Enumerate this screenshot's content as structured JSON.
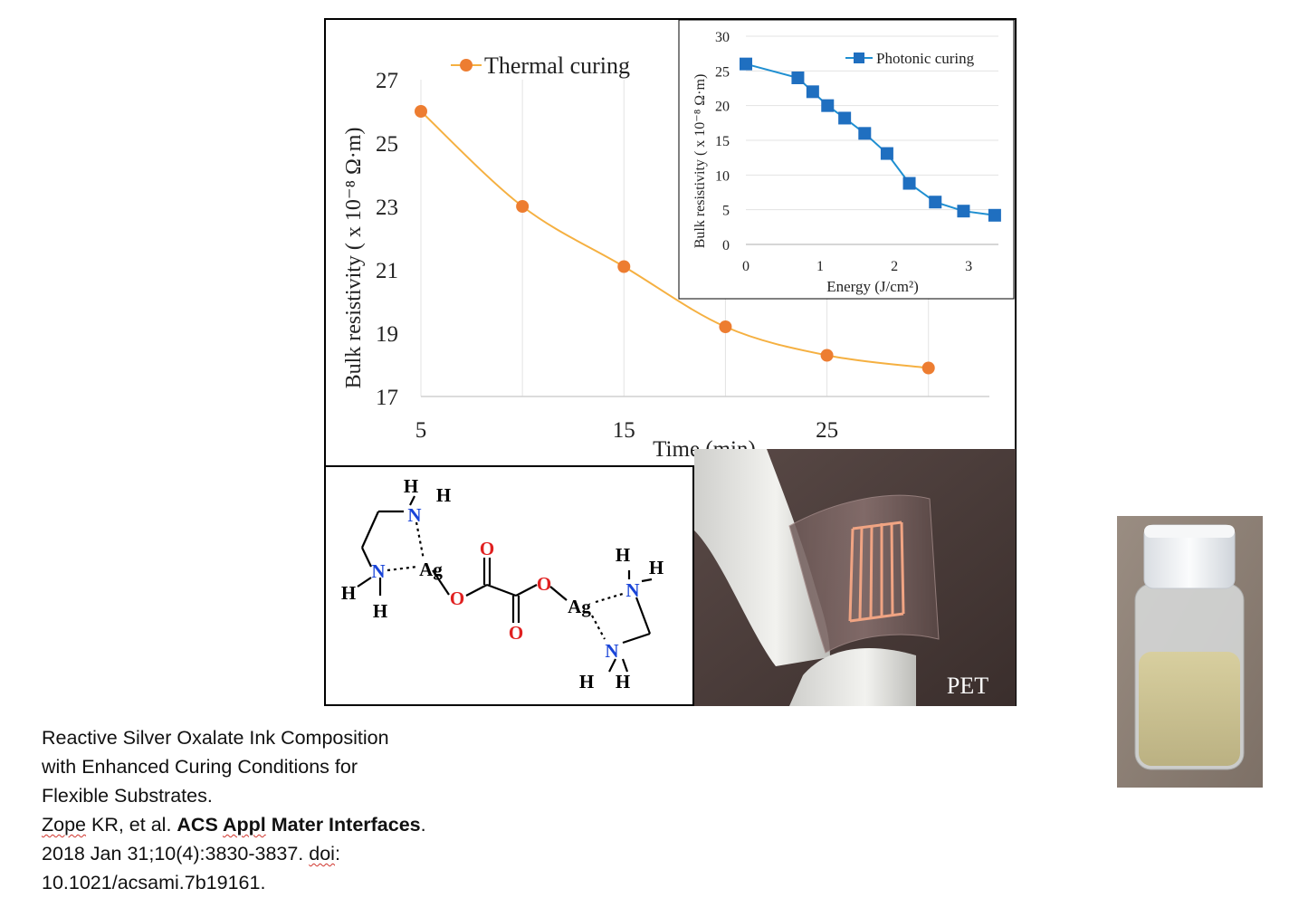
{
  "chart_data": [
    {
      "type": "line",
      "title": "",
      "xlabel": "Time (min)",
      "ylabel": "Bulk resistivity ( x 10⁻⁸ Ω·m)",
      "xlim": [
        5,
        33
      ],
      "ylim": [
        17,
        27
      ],
      "x_ticks": [
        "5",
        "15",
        "25"
      ],
      "y_ticks": [
        "17",
        "19",
        "21",
        "23",
        "25",
        "27"
      ],
      "grid": "vertical",
      "legend": "top-center",
      "series": [
        {
          "name": "Thermal curing",
          "color": "#f5b041",
          "marker_color": "#ed7d31",
          "x": [
            5,
            10,
            15,
            20,
            25,
            30
          ],
          "y": [
            26.0,
            23.0,
            21.1,
            19.2,
            18.3,
            17.9
          ]
        }
      ]
    },
    {
      "type": "line",
      "title": "",
      "xlabel": "Energy (J/cm²)",
      "ylabel": "Bulk resistivity ( x 10⁻⁸ Ω·m)",
      "xlim": [
        0,
        3.4
      ],
      "ylim": [
        0,
        30
      ],
      "x_ticks": [
        "0",
        "1",
        "2",
        "3"
      ],
      "y_ticks": [
        "0",
        "5",
        "10",
        "15",
        "20",
        "25",
        "30"
      ],
      "grid": "horizontal",
      "legend": "top-right",
      "series": [
        {
          "name": "Photonic curing",
          "color": "#1f8fd1",
          "marker_color": "#1f6fc0",
          "x": [
            0,
            0.7,
            0.9,
            1.1,
            1.33,
            1.6,
            1.9,
            2.2,
            2.55,
            2.93,
            3.35
          ],
          "y": [
            26.0,
            24.0,
            22.0,
            20.0,
            18.2,
            16.0,
            13.1,
            8.8,
            6.1,
            4.8,
            4.2
          ]
        }
      ]
    }
  ],
  "molecule": {
    "atoms": [
      "H",
      "H",
      "N",
      "N",
      "H",
      "H",
      "Ag",
      "O",
      "O",
      "O",
      "O",
      "Ag",
      "N",
      "H",
      "H",
      "N",
      "H",
      "H"
    ]
  },
  "photo": {
    "label": "PET"
  },
  "citation": {
    "line1": "Reactive Silver Oxalate Ink Composition",
    "line2": "with Enhanced Curing Conditions for",
    "line3": "Flexible Substrates.",
    "authors": "Zope",
    "authors_rest": " KR, et al. ",
    "journal_a": "ACS ",
    "journal_b": "Appl",
    "journal_c": " Mater Interfaces",
    "journal_end": ".",
    "ref": "2018 Jan 31;10(4):3830-3837. ",
    "doi_label": "doi",
    "doi_colon": ":",
    "doi": "10.1021/acsami.7b19161."
  }
}
